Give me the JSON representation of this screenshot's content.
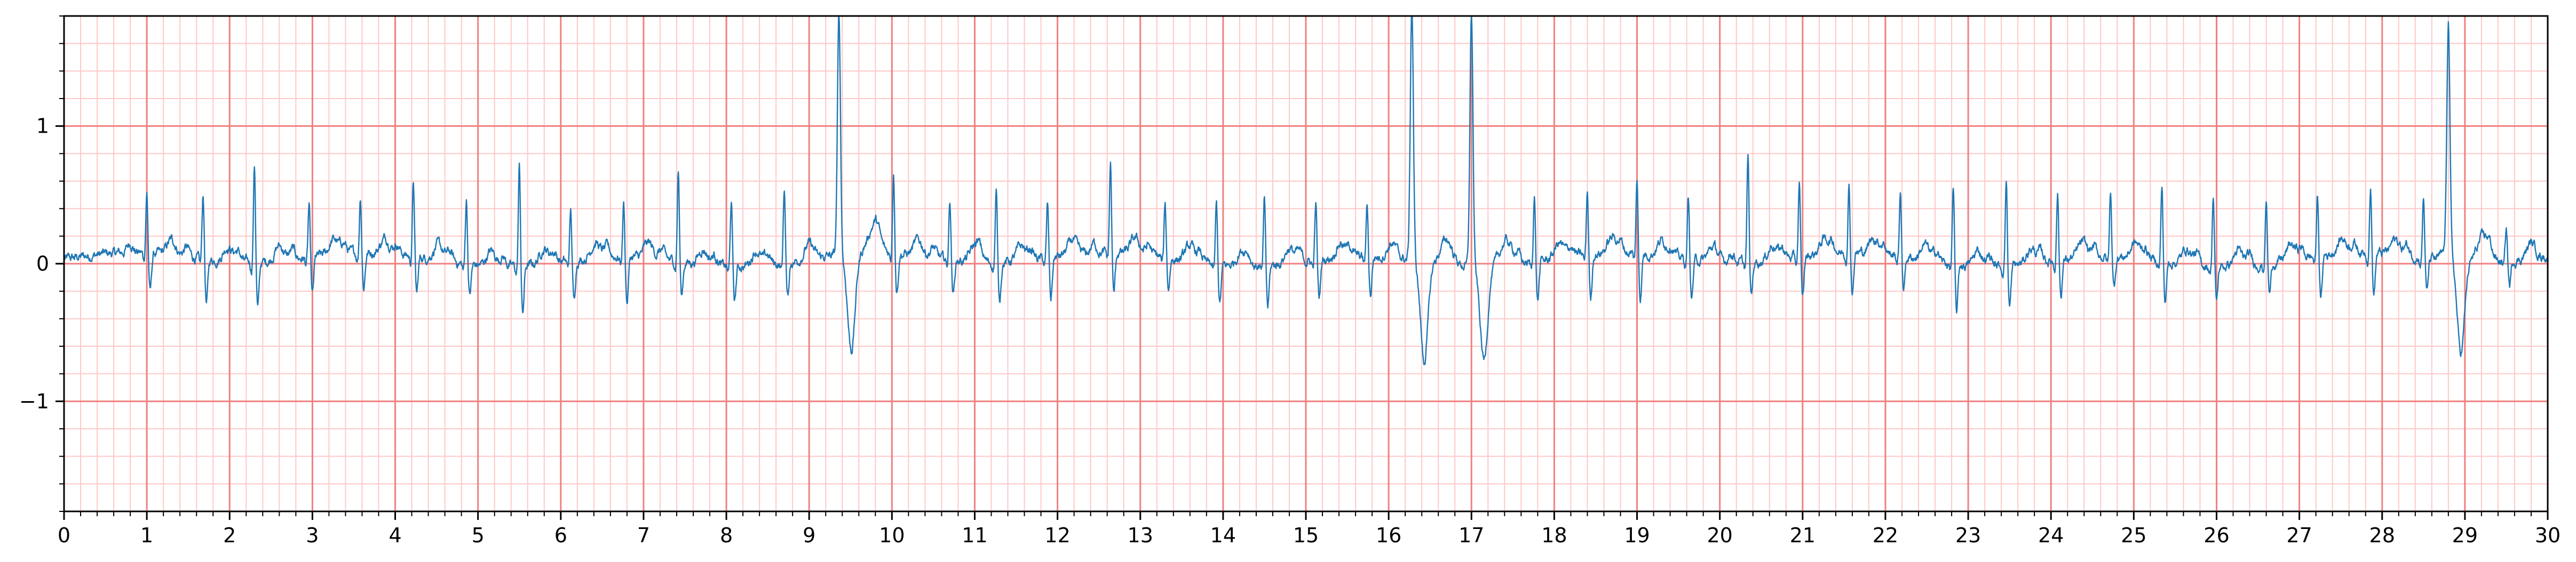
{
  "chart_data": {
    "type": "line",
    "title": "",
    "xlabel": "",
    "ylabel": "",
    "xlim": [
      0,
      30
    ],
    "ylim": [
      -1.8,
      1.8
    ],
    "x_major_ticks": [
      0,
      1,
      2,
      3,
      4,
      5,
      6,
      7,
      8,
      9,
      10,
      11,
      12,
      13,
      14,
      15,
      16,
      17,
      18,
      19,
      20,
      21,
      22,
      23,
      24,
      25,
      26,
      27,
      28,
      29,
      30
    ],
    "x_tick_labels": [
      "0",
      "1",
      "2",
      "3",
      "4",
      "5",
      "6",
      "7",
      "8",
      "9",
      "10",
      "11",
      "12",
      "13",
      "14",
      "15",
      "16",
      "17",
      "18",
      "19",
      "20",
      "21",
      "22",
      "23",
      "24",
      "25",
      "26",
      "27",
      "28",
      "29",
      "30"
    ],
    "x_minor_step": 0.2,
    "y_major_ticks": [
      -1,
      0,
      1
    ],
    "y_tick_labels": [
      "−1",
      "0",
      "1"
    ],
    "y_minor_step": 0.2,
    "grid": {
      "major": true,
      "minor": true
    },
    "colors": {
      "major_grid": "#f08080",
      "minor_grid": "#ffc8c8",
      "trace": "#1f77b4",
      "axes": "#000000"
    },
    "series": [
      {
        "beats": [
          {
            "t": 1.0,
            "r": 0.45,
            "s": -0.28,
            "q": -0.05
          },
          {
            "t": 1.68,
            "r": 0.48,
            "s": -0.32,
            "q": -0.05
          },
          {
            "t": 2.3,
            "r": 0.72,
            "s": -0.33,
            "q": -0.06
          },
          {
            "t": 2.96,
            "r": 0.38,
            "s": -0.28,
            "q": -0.05
          },
          {
            "t": 3.58,
            "r": 0.42,
            "s": -0.25,
            "q": -0.05
          },
          {
            "t": 4.22,
            "r": 0.55,
            "s": -0.27,
            "q": -0.05
          },
          {
            "t": 4.86,
            "r": 0.48,
            "s": -0.22,
            "q": -0.05
          },
          {
            "t": 5.5,
            "r": 0.74,
            "s": -0.35,
            "q": -0.06
          },
          {
            "t": 6.12,
            "r": 0.37,
            "s": -0.3,
            "q": -0.05
          },
          {
            "t": 6.76,
            "r": 0.4,
            "s": -0.33,
            "q": -0.05
          },
          {
            "t": 7.42,
            "r": 0.67,
            "s": -0.25,
            "q": -0.05
          },
          {
            "t": 8.06,
            "r": 0.48,
            "s": -0.25,
            "q": -0.05
          },
          {
            "t": 8.7,
            "r": 0.56,
            "s": -0.25,
            "q": -0.05
          },
          {
            "t": 9.36,
            "r": 1.75,
            "s": -0.7,
            "q": -0.1,
            "wide": true
          },
          {
            "t": 10.02,
            "r": 0.6,
            "s": -0.27,
            "q": -0.05
          },
          {
            "t": 10.7,
            "r": 0.45,
            "s": -0.25,
            "q": -0.05
          },
          {
            "t": 11.26,
            "r": 0.52,
            "s": -0.27,
            "q": -0.05
          },
          {
            "t": 11.88,
            "r": 0.4,
            "s": -0.3,
            "q": -0.05
          },
          {
            "t": 12.64,
            "r": 0.66,
            "s": -0.3,
            "q": -0.05
          },
          {
            "t": 13.3,
            "r": 0.4,
            "s": -0.22,
            "q": -0.05
          },
          {
            "t": 13.92,
            "r": 0.45,
            "s": -0.28,
            "q": -0.05
          },
          {
            "t": 14.5,
            "r": 0.48,
            "s": -0.3,
            "q": -0.05
          },
          {
            "t": 15.12,
            "r": 0.42,
            "s": -0.28,
            "q": -0.05
          },
          {
            "t": 15.74,
            "r": 0.38,
            "s": -0.28,
            "q": -0.05
          },
          {
            "t": 16.28,
            "r": 1.9,
            "s": -0.72,
            "q": -0.1,
            "wide": true
          },
          {
            "t": 17.0,
            "r": 1.85,
            "s": -0.68,
            "q": -0.1,
            "wide": true
          },
          {
            "t": 17.76,
            "r": 0.5,
            "s": -0.28,
            "q": -0.05
          },
          {
            "t": 18.4,
            "r": 0.47,
            "s": -0.33,
            "q": -0.05
          },
          {
            "t": 19.0,
            "r": 0.53,
            "s": -0.32,
            "q": -0.05
          },
          {
            "t": 19.62,
            "r": 0.45,
            "s": -0.28,
            "q": -0.05
          },
          {
            "t": 20.34,
            "r": 0.77,
            "s": -0.25,
            "q": -0.05
          },
          {
            "t": 20.96,
            "r": 0.54,
            "s": -0.3,
            "q": -0.05
          },
          {
            "t": 21.56,
            "r": 0.5,
            "s": -0.28,
            "q": -0.05
          },
          {
            "t": 22.18,
            "r": 0.45,
            "s": -0.22,
            "q": -0.05
          },
          {
            "t": 22.82,
            "r": 0.55,
            "s": -0.35,
            "q": -0.05
          },
          {
            "t": 23.46,
            "r": 0.64,
            "s": -0.3,
            "q": -0.05
          },
          {
            "t": 24.08,
            "r": 0.5,
            "s": -0.25,
            "q": -0.05
          },
          {
            "t": 24.72,
            "r": 0.48,
            "s": -0.22,
            "q": -0.05
          },
          {
            "t": 25.34,
            "r": 0.55,
            "s": -0.3,
            "q": -0.05
          },
          {
            "t": 25.96,
            "r": 0.52,
            "s": -0.25,
            "q": -0.05
          },
          {
            "t": 26.6,
            "r": 0.46,
            "s": -0.22,
            "q": -0.05
          },
          {
            "t": 27.22,
            "r": 0.45,
            "s": -0.32,
            "q": -0.05
          },
          {
            "t": 27.86,
            "r": 0.49,
            "s": -0.3,
            "q": -0.05
          },
          {
            "t": 28.5,
            "r": 0.45,
            "s": -0.25,
            "q": -0.05
          },
          {
            "t": 28.8,
            "r": 1.65,
            "s": -0.66,
            "q": -0.1,
            "wide": true
          },
          {
            "t": 29.5,
            "r": 0.24,
            "s": -0.18,
            "q": -0.04
          }
        ]
      }
    ]
  }
}
